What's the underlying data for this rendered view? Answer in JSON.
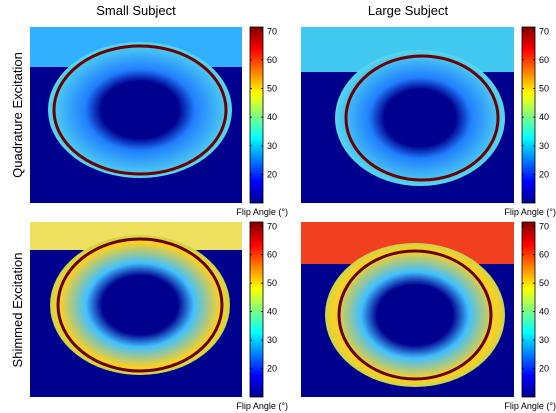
{
  "columns": [
    "Small Subject",
    "Large Subject"
  ],
  "rows": [
    "Quadrature Excitation",
    "Shimmed Excitation"
  ],
  "colorbar": {
    "label": "Flip Angle (°)",
    "lim": [
      10,
      71.5
    ],
    "ticks": [
      20,
      30,
      40,
      50,
      60,
      70
    ]
  }
}
